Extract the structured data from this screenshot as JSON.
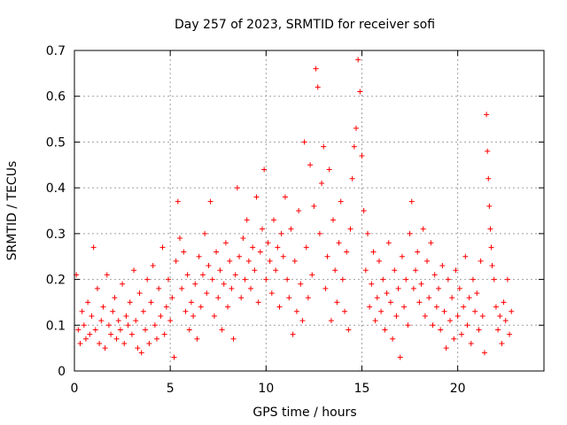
{
  "chart_data": {
    "type": "scatter",
    "title": "Day 257 of 2023, SRMTID for receiver sofi",
    "xlabel": "GPS time / hours",
    "ylabel": "SRMTID / TECUs",
    "xlim": [
      0,
      24.5
    ],
    "ylim": [
      0,
      0.7
    ],
    "xticks": [
      0,
      5,
      10,
      15,
      20
    ],
    "yticks": [
      0,
      0.1,
      0.2,
      0.3,
      0.4,
      0.5,
      0.6,
      0.7
    ],
    "xtick_labels": [
      "0",
      "5",
      "10",
      "15",
      "20"
    ],
    "ytick_labels": [
      "0",
      "0.1",
      "0.2",
      "0.3",
      "0.4",
      "0.5",
      "0.6",
      "0.7"
    ],
    "grid": true,
    "marker": "plus",
    "color": "#ff0000",
    "series": [
      {
        "name": "SRMTID",
        "points": [
          [
            0.1,
            0.21
          ],
          [
            0.2,
            0.09
          ],
          [
            0.3,
            0.06
          ],
          [
            0.4,
            0.13
          ],
          [
            0.5,
            0.1
          ],
          [
            0.6,
            0.07
          ],
          [
            0.7,
            0.15
          ],
          [
            0.8,
            0.08
          ],
          [
            0.9,
            0.12
          ],
          [
            1.0,
            0.27
          ],
          [
            1.1,
            0.09
          ],
          [
            1.2,
            0.18
          ],
          [
            1.3,
            0.06
          ],
          [
            1.4,
            0.11
          ],
          [
            1.5,
            0.14
          ],
          [
            1.6,
            0.05
          ],
          [
            1.7,
            0.21
          ],
          [
            1.8,
            0.1
          ],
          [
            1.9,
            0.08
          ],
          [
            2.0,
            0.13
          ],
          [
            2.1,
            0.16
          ],
          [
            2.2,
            0.07
          ],
          [
            2.3,
            0.11
          ],
          [
            2.4,
            0.09
          ],
          [
            2.5,
            0.19
          ],
          [
            2.6,
            0.06
          ],
          [
            2.7,
            0.12
          ],
          [
            2.8,
            0.1
          ],
          [
            2.9,
            0.15
          ],
          [
            3.0,
            0.08
          ],
          [
            3.1,
            0.22
          ],
          [
            3.2,
            0.11
          ],
          [
            3.3,
            0.05
          ],
          [
            3.4,
            0.17
          ],
          [
            3.5,
            0.04
          ],
          [
            3.6,
            0.13
          ],
          [
            3.7,
            0.09
          ],
          [
            3.8,
            0.2
          ],
          [
            3.9,
            0.06
          ],
          [
            4.0,
            0.15
          ],
          [
            4.1,
            0.23
          ],
          [
            4.2,
            0.1
          ],
          [
            4.3,
            0.07
          ],
          [
            4.4,
            0.18
          ],
          [
            4.5,
            0.12
          ],
          [
            4.6,
            0.27
          ],
          [
            4.7,
            0.08
          ],
          [
            4.8,
            0.14
          ],
          [
            4.9,
            0.2
          ],
          [
            5.0,
            0.11
          ],
          [
            5.1,
            0.16
          ],
          [
            5.2,
            0.03
          ],
          [
            5.3,
            0.24
          ],
          [
            5.4,
            0.37
          ],
          [
            5.5,
            0.29
          ],
          [
            5.6,
            0.18
          ],
          [
            5.7,
            0.26
          ],
          [
            5.8,
            0.13
          ],
          [
            5.9,
            0.21
          ],
          [
            6.0,
            0.09
          ],
          [
            6.1,
            0.15
          ],
          [
            6.2,
            0.12
          ],
          [
            6.3,
            0.19
          ],
          [
            6.4,
            0.07
          ],
          [
            6.5,
            0.25
          ],
          [
            6.6,
            0.14
          ],
          [
            6.7,
            0.21
          ],
          [
            6.8,
            0.3
          ],
          [
            6.9,
            0.17
          ],
          [
            7.0,
            0.23
          ],
          [
            7.1,
            0.37
          ],
          [
            7.2,
            0.2
          ],
          [
            7.3,
            0.12
          ],
          [
            7.4,
            0.26
          ],
          [
            7.5,
            0.16
          ],
          [
            7.6,
            0.22
          ],
          [
            7.7,
            0.09
          ],
          [
            7.8,
            0.19
          ],
          [
            7.9,
            0.28
          ],
          [
            8.0,
            0.14
          ],
          [
            8.1,
            0.24
          ],
          [
            8.2,
            0.18
          ],
          [
            8.3,
            0.07
          ],
          [
            8.4,
            0.21
          ],
          [
            8.5,
            0.4
          ],
          [
            8.6,
            0.25
          ],
          [
            8.7,
            0.16
          ],
          [
            8.8,
            0.29
          ],
          [
            8.9,
            0.2
          ],
          [
            9.0,
            0.33
          ],
          [
            9.1,
            0.24
          ],
          [
            9.2,
            0.18
          ],
          [
            9.3,
            0.27
          ],
          [
            9.4,
            0.22
          ],
          [
            9.5,
            0.38
          ],
          [
            9.6,
            0.15
          ],
          [
            9.7,
            0.26
          ],
          [
            9.8,
            0.31
          ],
          [
            9.9,
            0.44
          ],
          [
            10.0,
            0.2
          ],
          [
            10.1,
            0.28
          ],
          [
            10.2,
            0.24
          ],
          [
            10.3,
            0.17
          ],
          [
            10.4,
            0.33
          ],
          [
            10.5,
            0.22
          ],
          [
            10.6,
            0.27
          ],
          [
            10.7,
            0.14
          ],
          [
            10.8,
            0.3
          ],
          [
            10.9,
            0.25
          ],
          [
            11.0,
            0.38
          ],
          [
            11.1,
            0.2
          ],
          [
            11.2,
            0.16
          ],
          [
            11.3,
            0.31
          ],
          [
            11.4,
            0.08
          ],
          [
            11.5,
            0.24
          ],
          [
            11.6,
            0.13
          ],
          [
            11.7,
            0.35
          ],
          [
            11.8,
            0.19
          ],
          [
            11.9,
            0.11
          ],
          [
            12.0,
            0.5
          ],
          [
            12.1,
            0.27
          ],
          [
            12.2,
            0.16
          ],
          [
            12.3,
            0.45
          ],
          [
            12.4,
            0.21
          ],
          [
            12.5,
            0.36
          ],
          [
            12.6,
            0.66
          ],
          [
            12.7,
            0.62
          ],
          [
            12.8,
            0.3
          ],
          [
            12.9,
            0.41
          ],
          [
            13.0,
            0.49
          ],
          [
            13.1,
            0.18
          ],
          [
            13.2,
            0.25
          ],
          [
            13.3,
            0.44
          ],
          [
            13.4,
            0.11
          ],
          [
            13.5,
            0.33
          ],
          [
            13.6,
            0.22
          ],
          [
            13.7,
            0.15
          ],
          [
            13.8,
            0.28
          ],
          [
            13.9,
            0.37
          ],
          [
            14.0,
            0.2
          ],
          [
            14.1,
            0.13
          ],
          [
            14.2,
            0.26
          ],
          [
            14.3,
            0.09
          ],
          [
            14.4,
            0.31
          ],
          [
            14.5,
            0.42
          ],
          [
            14.6,
            0.49
          ],
          [
            14.7,
            0.53
          ],
          [
            14.8,
            0.68
          ],
          [
            14.9,
            0.61
          ],
          [
            15.0,
            0.47
          ],
          [
            15.1,
            0.35
          ],
          [
            15.2,
            0.22
          ],
          [
            15.3,
            0.3
          ],
          [
            15.4,
            0.14
          ],
          [
            15.5,
            0.19
          ],
          [
            15.6,
            0.26
          ],
          [
            15.7,
            0.11
          ],
          [
            15.8,
            0.16
          ],
          [
            15.9,
            0.24
          ],
          [
            16.0,
            0.13
          ],
          [
            16.1,
            0.2
          ],
          [
            16.2,
            0.09
          ],
          [
            16.3,
            0.17
          ],
          [
            16.4,
            0.28
          ],
          [
            16.5,
            0.15
          ],
          [
            16.6,
            0.07
          ],
          [
            16.7,
            0.22
          ],
          [
            16.8,
            0.12
          ],
          [
            16.9,
            0.18
          ],
          [
            17.0,
            0.03
          ],
          [
            17.1,
            0.25
          ],
          [
            17.2,
            0.14
          ],
          [
            17.3,
            0.2
          ],
          [
            17.4,
            0.1
          ],
          [
            17.5,
            0.3
          ],
          [
            17.6,
            0.37
          ],
          [
            17.7,
            0.18
          ],
          [
            17.8,
            0.22
          ],
          [
            17.9,
            0.26
          ],
          [
            18.0,
            0.15
          ],
          [
            18.1,
            0.19
          ],
          [
            18.2,
            0.31
          ],
          [
            18.3,
            0.12
          ],
          [
            18.4,
            0.24
          ],
          [
            18.5,
            0.16
          ],
          [
            18.6,
            0.28
          ],
          [
            18.7,
            0.1
          ],
          [
            18.8,
            0.21
          ],
          [
            18.9,
            0.14
          ],
          [
            19.0,
            0.18
          ],
          [
            19.1,
            0.09
          ],
          [
            19.2,
            0.23
          ],
          [
            19.3,
            0.13
          ],
          [
            19.4,
            0.05
          ],
          [
            19.5,
            0.2
          ],
          [
            19.6,
            0.11
          ],
          [
            19.7,
            0.16
          ],
          [
            19.8,
            0.07
          ],
          [
            19.9,
            0.22
          ],
          [
            20.0,
            0.12
          ],
          [
            20.1,
            0.18
          ],
          [
            20.2,
            0.08
          ],
          [
            20.3,
            0.14
          ],
          [
            20.4,
            0.25
          ],
          [
            20.5,
            0.1
          ],
          [
            20.6,
            0.16
          ],
          [
            20.7,
            0.06
          ],
          [
            20.8,
            0.2
          ],
          [
            20.9,
            0.13
          ],
          [
            21.0,
            0.17
          ],
          [
            21.1,
            0.09
          ],
          [
            21.2,
            0.24
          ],
          [
            21.3,
            0.12
          ],
          [
            21.4,
            0.04
          ],
          [
            21.5,
            0.56
          ],
          [
            21.55,
            0.48
          ],
          [
            21.6,
            0.42
          ],
          [
            21.65,
            0.36
          ],
          [
            21.7,
            0.31
          ],
          [
            21.75,
            0.27
          ],
          [
            21.8,
            0.23
          ],
          [
            21.9,
            0.2
          ],
          [
            22.0,
            0.14
          ],
          [
            22.1,
            0.09
          ],
          [
            22.2,
            0.12
          ],
          [
            22.3,
            0.06
          ],
          [
            22.4,
            0.15
          ],
          [
            22.5,
            0.11
          ],
          [
            22.6,
            0.2
          ],
          [
            22.7,
            0.08
          ],
          [
            22.8,
            0.13
          ]
        ]
      }
    ]
  }
}
